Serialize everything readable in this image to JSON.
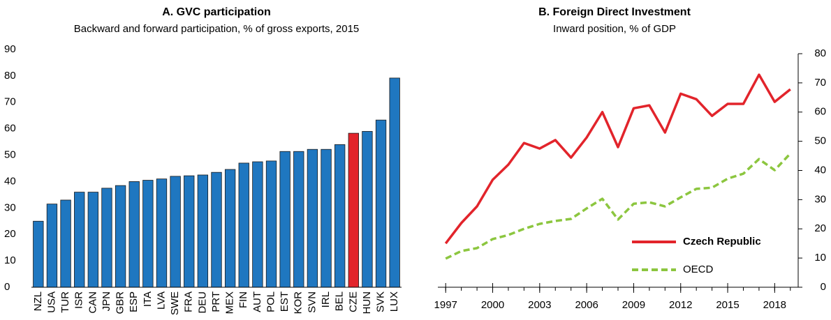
{
  "chart_data": [
    {
      "type": "bar",
      "title": "A. GVC participation",
      "subtitle": "Backward and forward participation, % of gross exports, 2015",
      "categories": [
        "NZL",
        "USA",
        "TUR",
        "ISR",
        "CAN",
        "JPN",
        "GBR",
        "ESP",
        "ITA",
        "LVA",
        "SWE",
        "FRA",
        "DEU",
        "PRT",
        "MEX",
        "FIN",
        "AUT",
        "POL",
        "EST",
        "KOR",
        "SVN",
        "IRL",
        "BEL",
        "CZE",
        "HUN",
        "SVK",
        "LUX"
      ],
      "values": [
        25,
        31.5,
        33,
        36,
        36,
        37.5,
        38.5,
        40,
        40.5,
        41,
        42,
        42.2,
        42.5,
        43.5,
        44.6,
        47,
        47.5,
        47.8,
        51.4,
        51.4,
        52.2,
        52.2,
        54,
        58.3,
        59,
        63.3,
        79.2
      ],
      "color": "#1f77c0",
      "highlight": {
        "category": "CZE",
        "color": "#e2242b"
      },
      "ylim": [
        0,
        90
      ],
      "yticks": [
        0,
        10,
        20,
        30,
        40,
        50,
        60,
        70,
        80,
        90
      ]
    },
    {
      "type": "line",
      "title": "B. Foreign Direct Investment",
      "subtitle": "Inward position, % of GDP",
      "x": [
        1997,
        1998,
        1999,
        2000,
        2001,
        2002,
        2003,
        2004,
        2005,
        2006,
        2007,
        2008,
        2009,
        2010,
        2011,
        2012,
        2013,
        2014,
        2015,
        2016,
        2017,
        2018,
        2019
      ],
      "series": [
        {
          "name": "Czech Republic",
          "color": "#e2242b",
          "dash": false,
          "values": [
            15,
            22,
            27.7,
            36.8,
            42,
            49.4,
            47.5,
            50.4,
            44.4,
            51.3,
            60,
            48,
            61.3,
            62.3,
            53,
            66.3,
            64.4,
            58.7,
            62.8,
            62.8,
            72.8,
            63.5,
            67.8
          ]
        },
        {
          "name": "OECD",
          "color": "#8cc63f",
          "dash": true,
          "values": [
            9.8,
            12.4,
            13.4,
            16.5,
            17.9,
            20,
            21.7,
            22.7,
            23.4,
            27,
            30.3,
            23.2,
            28.6,
            29.1,
            27.7,
            30.8,
            33.7,
            34.1,
            37.2,
            38.9,
            43.9,
            40.1,
            45.8
          ]
        }
      ],
      "xlim": [
        1996.5,
        2019.5
      ],
      "xticks": [
        1997,
        2000,
        2003,
        2006,
        2009,
        2012,
        2015,
        2018
      ],
      "ylim": [
        0,
        80
      ],
      "yticks": [
        0,
        10,
        20,
        30,
        40,
        50,
        60,
        70,
        80
      ],
      "y_axis_side": "right",
      "legend": "lower right"
    }
  ]
}
